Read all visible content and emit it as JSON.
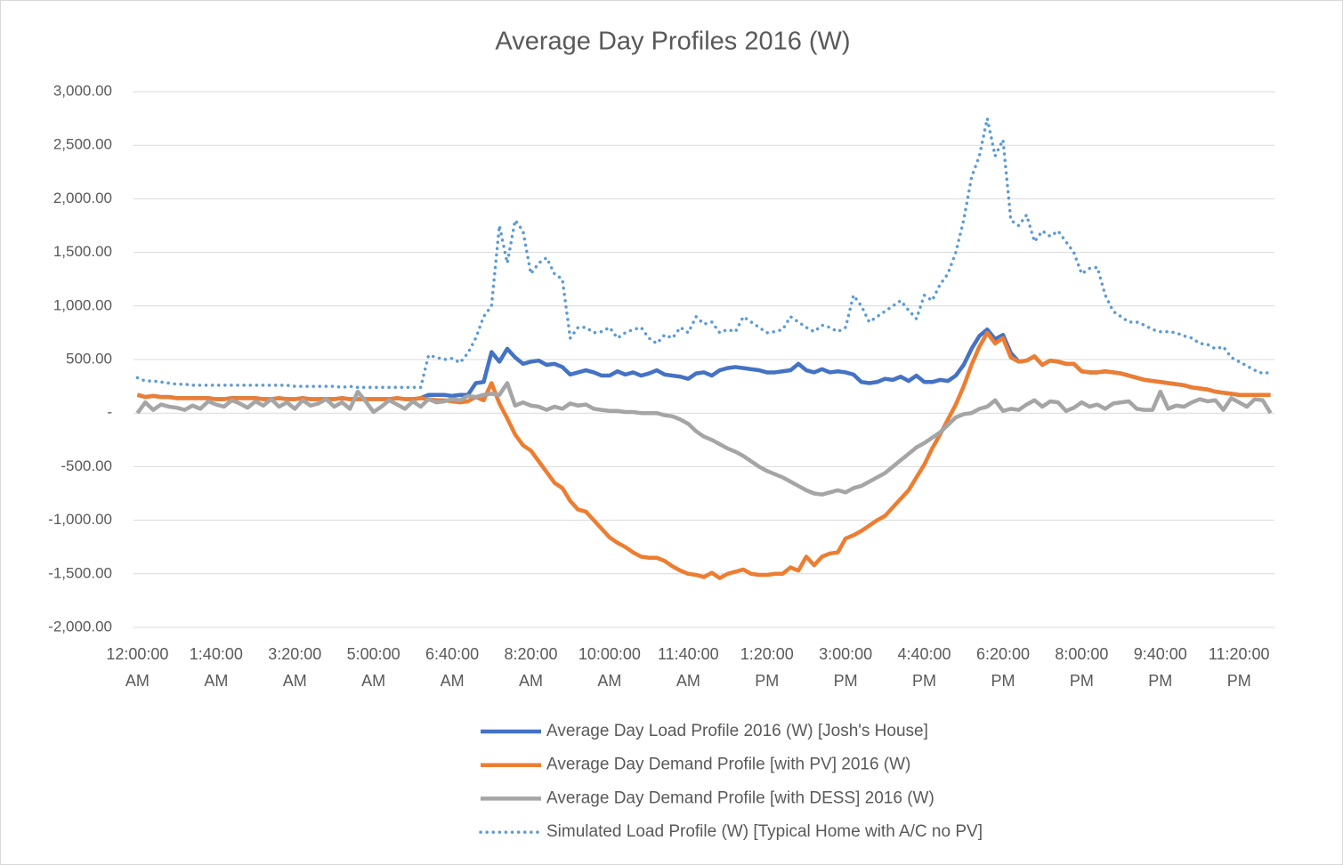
{
  "chart_data": {
    "type": "line",
    "title": "Average Day Profiles 2016 (W)",
    "categories": [
      "12:00:00 AM",
      null,
      null,
      null,
      null,
      null,
      null,
      null,
      null,
      null,
      "1:40:00 AM",
      null,
      null,
      null,
      null,
      null,
      null,
      null,
      null,
      null,
      "3:20:00 AM",
      null,
      null,
      null,
      null,
      null,
      null,
      null,
      null,
      null,
      "5:00:00 AM",
      null,
      null,
      null,
      null,
      null,
      null,
      null,
      null,
      null,
      "6:40:00 AM",
      null,
      null,
      null,
      null,
      null,
      null,
      null,
      null,
      null,
      "8:20:00 AM",
      null,
      null,
      null,
      null,
      null,
      null,
      null,
      null,
      null,
      "10:00:00 AM",
      null,
      null,
      null,
      null,
      null,
      null,
      null,
      null,
      null,
      "11:40:00 AM",
      null,
      null,
      null,
      null,
      null,
      null,
      null,
      null,
      null,
      "1:20:00 PM",
      null,
      null,
      null,
      null,
      null,
      null,
      null,
      null,
      null,
      "3:00:00 PM",
      null,
      null,
      null,
      null,
      null,
      null,
      null,
      null,
      null,
      "4:40:00 PM",
      null,
      null,
      null,
      null,
      null,
      null,
      null,
      null,
      null,
      "6:20:00 PM",
      null,
      null,
      null,
      null,
      null,
      null,
      null,
      null,
      null,
      "8:00:00 PM",
      null,
      null,
      null,
      null,
      null,
      null,
      null,
      null,
      null,
      "9:40:00 PM",
      null,
      null,
      null,
      null,
      null,
      null,
      null,
      null,
      null,
      "11:20:00 PM",
      null,
      null,
      null,
      null
    ],
    "series": [
      {
        "name": "Average Day Load Profile 2016 (W) [Josh's House]",
        "color": "#4472c4",
        "line_style": "solid",
        "values": [
          170,
          150,
          160,
          150,
          150,
          140,
          140,
          140,
          140,
          140,
          130,
          130,
          140,
          140,
          140,
          140,
          130,
          130,
          140,
          130,
          130,
          140,
          130,
          130,
          130,
          130,
          140,
          130,
          130,
          130,
          130,
          130,
          130,
          140,
          130,
          130,
          140,
          170,
          170,
          170,
          160,
          170,
          170,
          280,
          290,
          570,
          480,
          600,
          520,
          460,
          480,
          490,
          450,
          460,
          430,
          360,
          380,
          400,
          380,
          350,
          350,
          390,
          360,
          380,
          350,
          370,
          400,
          360,
          350,
          340,
          320,
          370,
          380,
          350,
          400,
          420,
          430,
          420,
          410,
          400,
          380,
          380,
          390,
          400,
          460,
          400,
          380,
          410,
          380,
          390,
          380,
          360,
          290,
          280,
          290,
          320,
          310,
          340,
          300,
          350,
          290,
          290,
          310,
          300,
          350,
          450,
          600,
          720,
          780,
          690,
          730,
          560,
          480,
          490,
          530,
          450,
          490,
          480,
          460,
          460,
          390,
          380,
          380,
          390,
          380,
          370,
          350,
          330,
          310,
          300,
          290,
          280,
          270,
          260,
          240,
          230,
          220,
          200,
          190,
          180,
          170,
          170,
          170,
          170,
          170
        ]
      },
      {
        "name": "Average Day Demand Profile [with PV] 2016 (W)",
        "color": "#ed7d31",
        "line_style": "solid",
        "values": [
          170,
          150,
          160,
          150,
          150,
          140,
          140,
          140,
          140,
          140,
          130,
          130,
          140,
          140,
          140,
          140,
          130,
          130,
          140,
          130,
          130,
          140,
          130,
          130,
          130,
          130,
          140,
          130,
          130,
          130,
          130,
          130,
          130,
          140,
          130,
          130,
          140,
          130,
          120,
          120,
          110,
          100,
          110,
          150,
          120,
          280,
          90,
          -50,
          -200,
          -300,
          -350,
          -450,
          -550,
          -650,
          -700,
          -820,
          -900,
          -920,
          -1000,
          -1080,
          -1160,
          -1210,
          -1250,
          -1300,
          -1340,
          -1350,
          -1350,
          -1380,
          -1430,
          -1470,
          -1500,
          -1510,
          -1530,
          -1490,
          -1540,
          -1500,
          -1480,
          -1460,
          -1500,
          -1510,
          -1510,
          -1500,
          -1500,
          -1440,
          -1470,
          -1340,
          -1420,
          -1340,
          -1310,
          -1300,
          -1170,
          -1140,
          -1100,
          -1050,
          -1000,
          -960,
          -880,
          -800,
          -720,
          -600,
          -480,
          -330,
          -200,
          -60,
          80,
          250,
          450,
          620,
          750,
          650,
          700,
          520,
          480,
          490,
          530,
          450,
          490,
          480,
          460,
          460,
          390,
          380,
          380,
          390,
          380,
          370,
          350,
          330,
          310,
          300,
          290,
          280,
          270,
          260,
          240,
          230,
          220,
          200,
          190,
          180,
          170,
          170,
          170,
          170,
          170
        ]
      },
      {
        "name": "Average Day Demand Profile [with DESS] 2016 (W)",
        "color": "#a5a5a5",
        "line_style": "solid",
        "values": [
          0,
          100,
          30,
          80,
          60,
          50,
          30,
          70,
          40,
          110,
          80,
          60,
          120,
          90,
          50,
          110,
          70,
          130,
          60,
          100,
          40,
          120,
          70,
          90,
          130,
          60,
          100,
          40,
          200,
          110,
          10,
          60,
          120,
          80,
          40,
          110,
          60,
          130,
          100,
          110,
          130,
          120,
          160,
          150,
          170,
          180,
          170,
          280,
          70,
          100,
          70,
          60,
          30,
          60,
          40,
          90,
          70,
          80,
          40,
          30,
          20,
          20,
          10,
          10,
          0,
          0,
          0,
          -20,
          -30,
          -60,
          -100,
          -170,
          -220,
          -250,
          -290,
          -330,
          -360,
          -400,
          -450,
          -500,
          -540,
          -570,
          -600,
          -640,
          -680,
          -720,
          -750,
          -760,
          -740,
          -720,
          -740,
          -700,
          -680,
          -640,
          -600,
          -560,
          -500,
          -440,
          -380,
          -320,
          -280,
          -230,
          -180,
          -110,
          -40,
          -10,
          0,
          40,
          60,
          120,
          20,
          40,
          30,
          80,
          120,
          60,
          110,
          100,
          20,
          50,
          100,
          60,
          80,
          40,
          90,
          100,
          110,
          40,
          30,
          30,
          200,
          40,
          70,
          60,
          100,
          130,
          110,
          120,
          30,
          140,
          100,
          60,
          130,
          120,
          0
        ]
      },
      {
        "name": "Simulated Load Profile  (W) [Typical Home with A/C no PV]",
        "color": "#5b9bd5",
        "line_style": "dotted",
        "values": [
          330,
          300,
          300,
          290,
          280,
          270,
          270,
          260,
          260,
          260,
          260,
          260,
          260,
          260,
          260,
          260,
          260,
          260,
          260,
          260,
          250,
          250,
          250,
          250,
          250,
          250,
          240,
          250,
          240,
          240,
          240,
          240,
          240,
          240,
          240,
          240,
          240,
          540,
          520,
          500,
          510,
          470,
          560,
          700,
          900,
          1000,
          1750,
          1400,
          1800,
          1700,
          1300,
          1400,
          1450,
          1300,
          1250,
          700,
          800,
          800,
          750,
          760,
          800,
          700,
          750,
          780,
          800,
          700,
          650,
          730,
          700,
          800,
          750,
          900,
          830,
          850,
          750,
          780,
          760,
          900,
          850,
          800,
          750,
          760,
          780,
          900,
          850,
          800,
          760,
          820,
          800,
          760,
          800,
          1100,
          1000,
          850,
          900,
          950,
          1000,
          1050,
          960,
          880,
          1100,
          1050,
          1200,
          1300,
          1500,
          1800,
          2200,
          2400,
          2750,
          2400,
          2550,
          1800,
          1750,
          1850,
          1600,
          1700,
          1650,
          1700,
          1600,
          1500,
          1300,
          1350,
          1360,
          1100,
          950,
          900,
          850,
          850,
          820,
          780,
          760,
          760,
          750,
          720,
          700,
          650,
          640,
          600,
          620,
          520,
          480,
          440,
          400,
          370,
          380
        ]
      }
    ],
    "ylim": [
      -2000,
      3000
    ],
    "yticks": [
      {
        "value": -2000,
        "label": "-2,000.00"
      },
      {
        "value": -1500,
        "label": "-1,500.00"
      },
      {
        "value": -1000,
        "label": "-1,000.00"
      },
      {
        "value": -500,
        "label": "-500.00"
      },
      {
        "value": 0,
        "label": "-"
      },
      {
        "value": 500,
        "label": "500.00"
      },
      {
        "value": 1000,
        "label": "1,000.00"
      },
      {
        "value": 1500,
        "label": "1,500.00"
      },
      {
        "value": 2000,
        "label": "2,000.00"
      },
      {
        "value": 2500,
        "label": "2,500.00"
      },
      {
        "value": 3000,
        "label": "3,000.00"
      }
    ],
    "grid": true,
    "legend": "bottom"
  }
}
